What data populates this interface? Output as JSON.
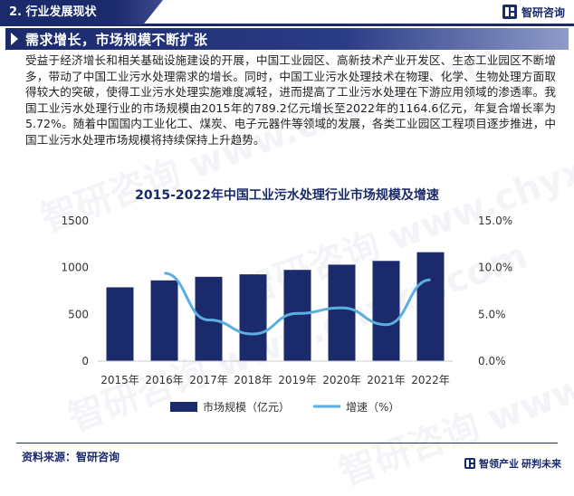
{
  "header": {
    "section_label": "2. 行业发展现状",
    "brand": "智研咨询"
  },
  "banner": {
    "title": "需求增长，市场规模不断扩张"
  },
  "body_text": "受益于经济增长和相关基础设施建设的开展，中国工业园区、高新技术产业开发区、生态工业园区不断增多，带动了中国工业污水处理需求的增长。同时，中国工业污水处理技术在物理、化学、生物处理方面取得较大的突破，使得工业污水处理实施难度减轻，进而提高了工业污水处理在下游应用领域的渗透率。我国工业污水处理行业的市场规模由2015年的789.2亿元增长至2022年的1164.6亿元，年复合增长率为5.72%。随着中国国内工业化工、煤炭、电子元器件等领域的发展，各类工业园区工程项目逐步推进，中国工业污水处理市场规模将持续保持上升趋势。",
  "chart_data": {
    "type": "bar",
    "title": "2015-2022年中国工业污水处理行业市场规模及增速",
    "categories": [
      "2015年",
      "2016年",
      "2017年",
      "2018年",
      "2019年",
      "2020年",
      "2021年",
      "2022年"
    ],
    "series": [
      {
        "name": "市场规模（亿元）",
        "type": "bar",
        "axis": "left",
        "color": "#1b2a6b",
        "values": [
          789.2,
          863.5,
          901.8,
          928.0,
          975.5,
          1031.4,
          1071.6,
          1164.6
        ]
      },
      {
        "name": "增速（%）",
        "type": "line",
        "axis": "right",
        "color": "#5aaee0",
        "values": [
          null,
          9.4,
          4.4,
          2.9,
          5.1,
          5.7,
          3.9,
          8.7
        ]
      }
    ],
    "y_left": {
      "ticks": [
        "0",
        "500",
        "1000",
        "1500"
      ],
      "lim": [
        0,
        1500
      ]
    },
    "y_right": {
      "ticks": [
        "0.0%",
        "5.0%",
        "10.0%",
        "15.0%"
      ],
      "lim": [
        0,
        15
      ]
    },
    "grid": false,
    "legend_position": "bottom"
  },
  "source": "资料来源：智研咨询",
  "footer": {
    "brand_left": "智领产业",
    "brand_right": "研判未来"
  },
  "watermark": "智研咨询 www.chyxx.com",
  "colors": {
    "navy": "#1b2a6b",
    "light_blue": "#5aaee0"
  }
}
